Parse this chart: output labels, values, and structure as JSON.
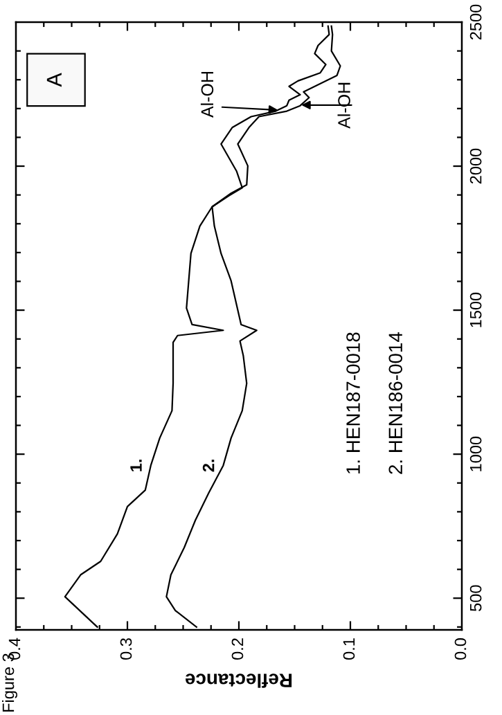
{
  "chart_data": {
    "type": "line",
    "xlabel": "Reflectance",
    "series": [
      {
        "name": "1.",
        "color": "#000000",
        "x": [
          0.327,
          0.356,
          0.342,
          0.324,
          0.309,
          0.3,
          0.284,
          0.279,
          0.271,
          0.26,
          0.259,
          0.259,
          0.255,
          0.214,
          0.242,
          0.247,
          0.245,
          0.243,
          0.235,
          0.224,
          0.209,
          0.197,
          0.202,
          0.216,
          0.206,
          0.189,
          0.167,
          0.157,
          0.155,
          0.145,
          0.155,
          0.147,
          0.127,
          0.122,
          0.132,
          0.129,
          0.119,
          0.12
        ],
        "values": [
          400,
          505,
          581,
          628,
          723,
          818,
          875,
          961,
          1056,
          1151,
          1246,
          1388,
          1412,
          1430,
          1450,
          1507,
          1602,
          1697,
          1792,
          1859,
          1897,
          1925,
          1982,
          2077,
          2134,
          2172,
          2191,
          2210,
          2229,
          2248,
          2277,
          2296,
          2324,
          2353,
          2391,
          2419,
          2457,
          2486
        ]
      },
      {
        "name": "2.",
        "color": "#000000",
        "x": [
          0.238,
          0.257,
          0.265,
          0.261,
          0.249,
          0.239,
          0.227,
          0.214,
          0.207,
          0.197,
          0.193,
          0.196,
          0.199,
          0.184,
          0.198,
          0.207,
          0.216,
          0.222,
          0.224,
          0.207,
          0.193,
          0.192,
          0.201,
          0.191,
          0.182,
          0.157,
          0.145,
          0.137,
          0.142,
          0.112,
          0.109,
          0.117,
          0.116,
          0.117
        ],
        "values": [
          400,
          457,
          505,
          581,
          676,
          771,
          866,
          961,
          1056,
          1151,
          1246,
          1341,
          1393,
          1430,
          1450,
          1602,
          1697,
          1792,
          1859,
          1906,
          1935,
          2001,
          2077,
          2134,
          2172,
          2191,
          2210,
          2238,
          2258,
          2315,
          2348,
          2400,
          2457,
          2486
        ]
      }
    ],
    "xlim": [
      0.4,
      0.0
    ],
    "xticks": [
      {
        "value": 0.4,
        "label": "0.4"
      },
      {
        "value": 0.375,
        "label": null
      },
      {
        "value": 0.35,
        "label": null
      },
      {
        "value": 0.325,
        "label": null
      },
      0.3,
      {
        "value": 0.275,
        "label": null
      },
      {
        "value": 0.25,
        "label": null
      },
      {
        "value": 0.225,
        "label": null
      },
      0.2,
      {
        "value": 0.175,
        "label": null
      },
      {
        "value": 0.15,
        "label": null
      },
      {
        "value": 0.125,
        "label": null
      },
      0.1,
      {
        "value": 0.075,
        "label": null
      },
      {
        "value": 0.05,
        "label": null
      },
      {
        "value": 0.025,
        "label": null
      },
      {
        "value": 0.0,
        "label": "0.0"
      }
    ],
    "ylim": [
      390,
      2500
    ],
    "yticks": [
      {
        "value": 400,
        "label": null
      },
      500,
      {
        "value": 600,
        "label": null
      },
      {
        "value": 700,
        "label": null
      },
      {
        "value": 800,
        "label": null
      },
      {
        "value": 900,
        "label": null
      },
      1000,
      {
        "value": 1100,
        "label": null
      },
      {
        "value": 1200,
        "label": null
      },
      {
        "value": 1300,
        "label": null
      },
      {
        "value": 1400,
        "label": null
      },
      1500,
      {
        "value": 1600,
        "label": null
      },
      {
        "value": 1700,
        "label": null
      },
      {
        "value": 1800,
        "label": null
      },
      {
        "value": 1900,
        "label": null
      },
      2000,
      {
        "value": 2100,
        "label": null
      },
      {
        "value": 2200,
        "label": null
      },
      {
        "value": 2300,
        "label": null
      },
      {
        "value": 2400,
        "label": null
      },
      2500
    ],
    "annotations": [
      {
        "text": "Al-OH",
        "x": 0.165,
        "y": 2195
      },
      {
        "text": "Al-OH",
        "x": 0.144,
        "y": 2212
      },
      "A",
      "1. HEN187-0018",
      "2. HEN186-0014",
      "Figure 3"
    ],
    "grid": false,
    "legend": false,
    "line_style": "solid",
    "marker": "none"
  }
}
